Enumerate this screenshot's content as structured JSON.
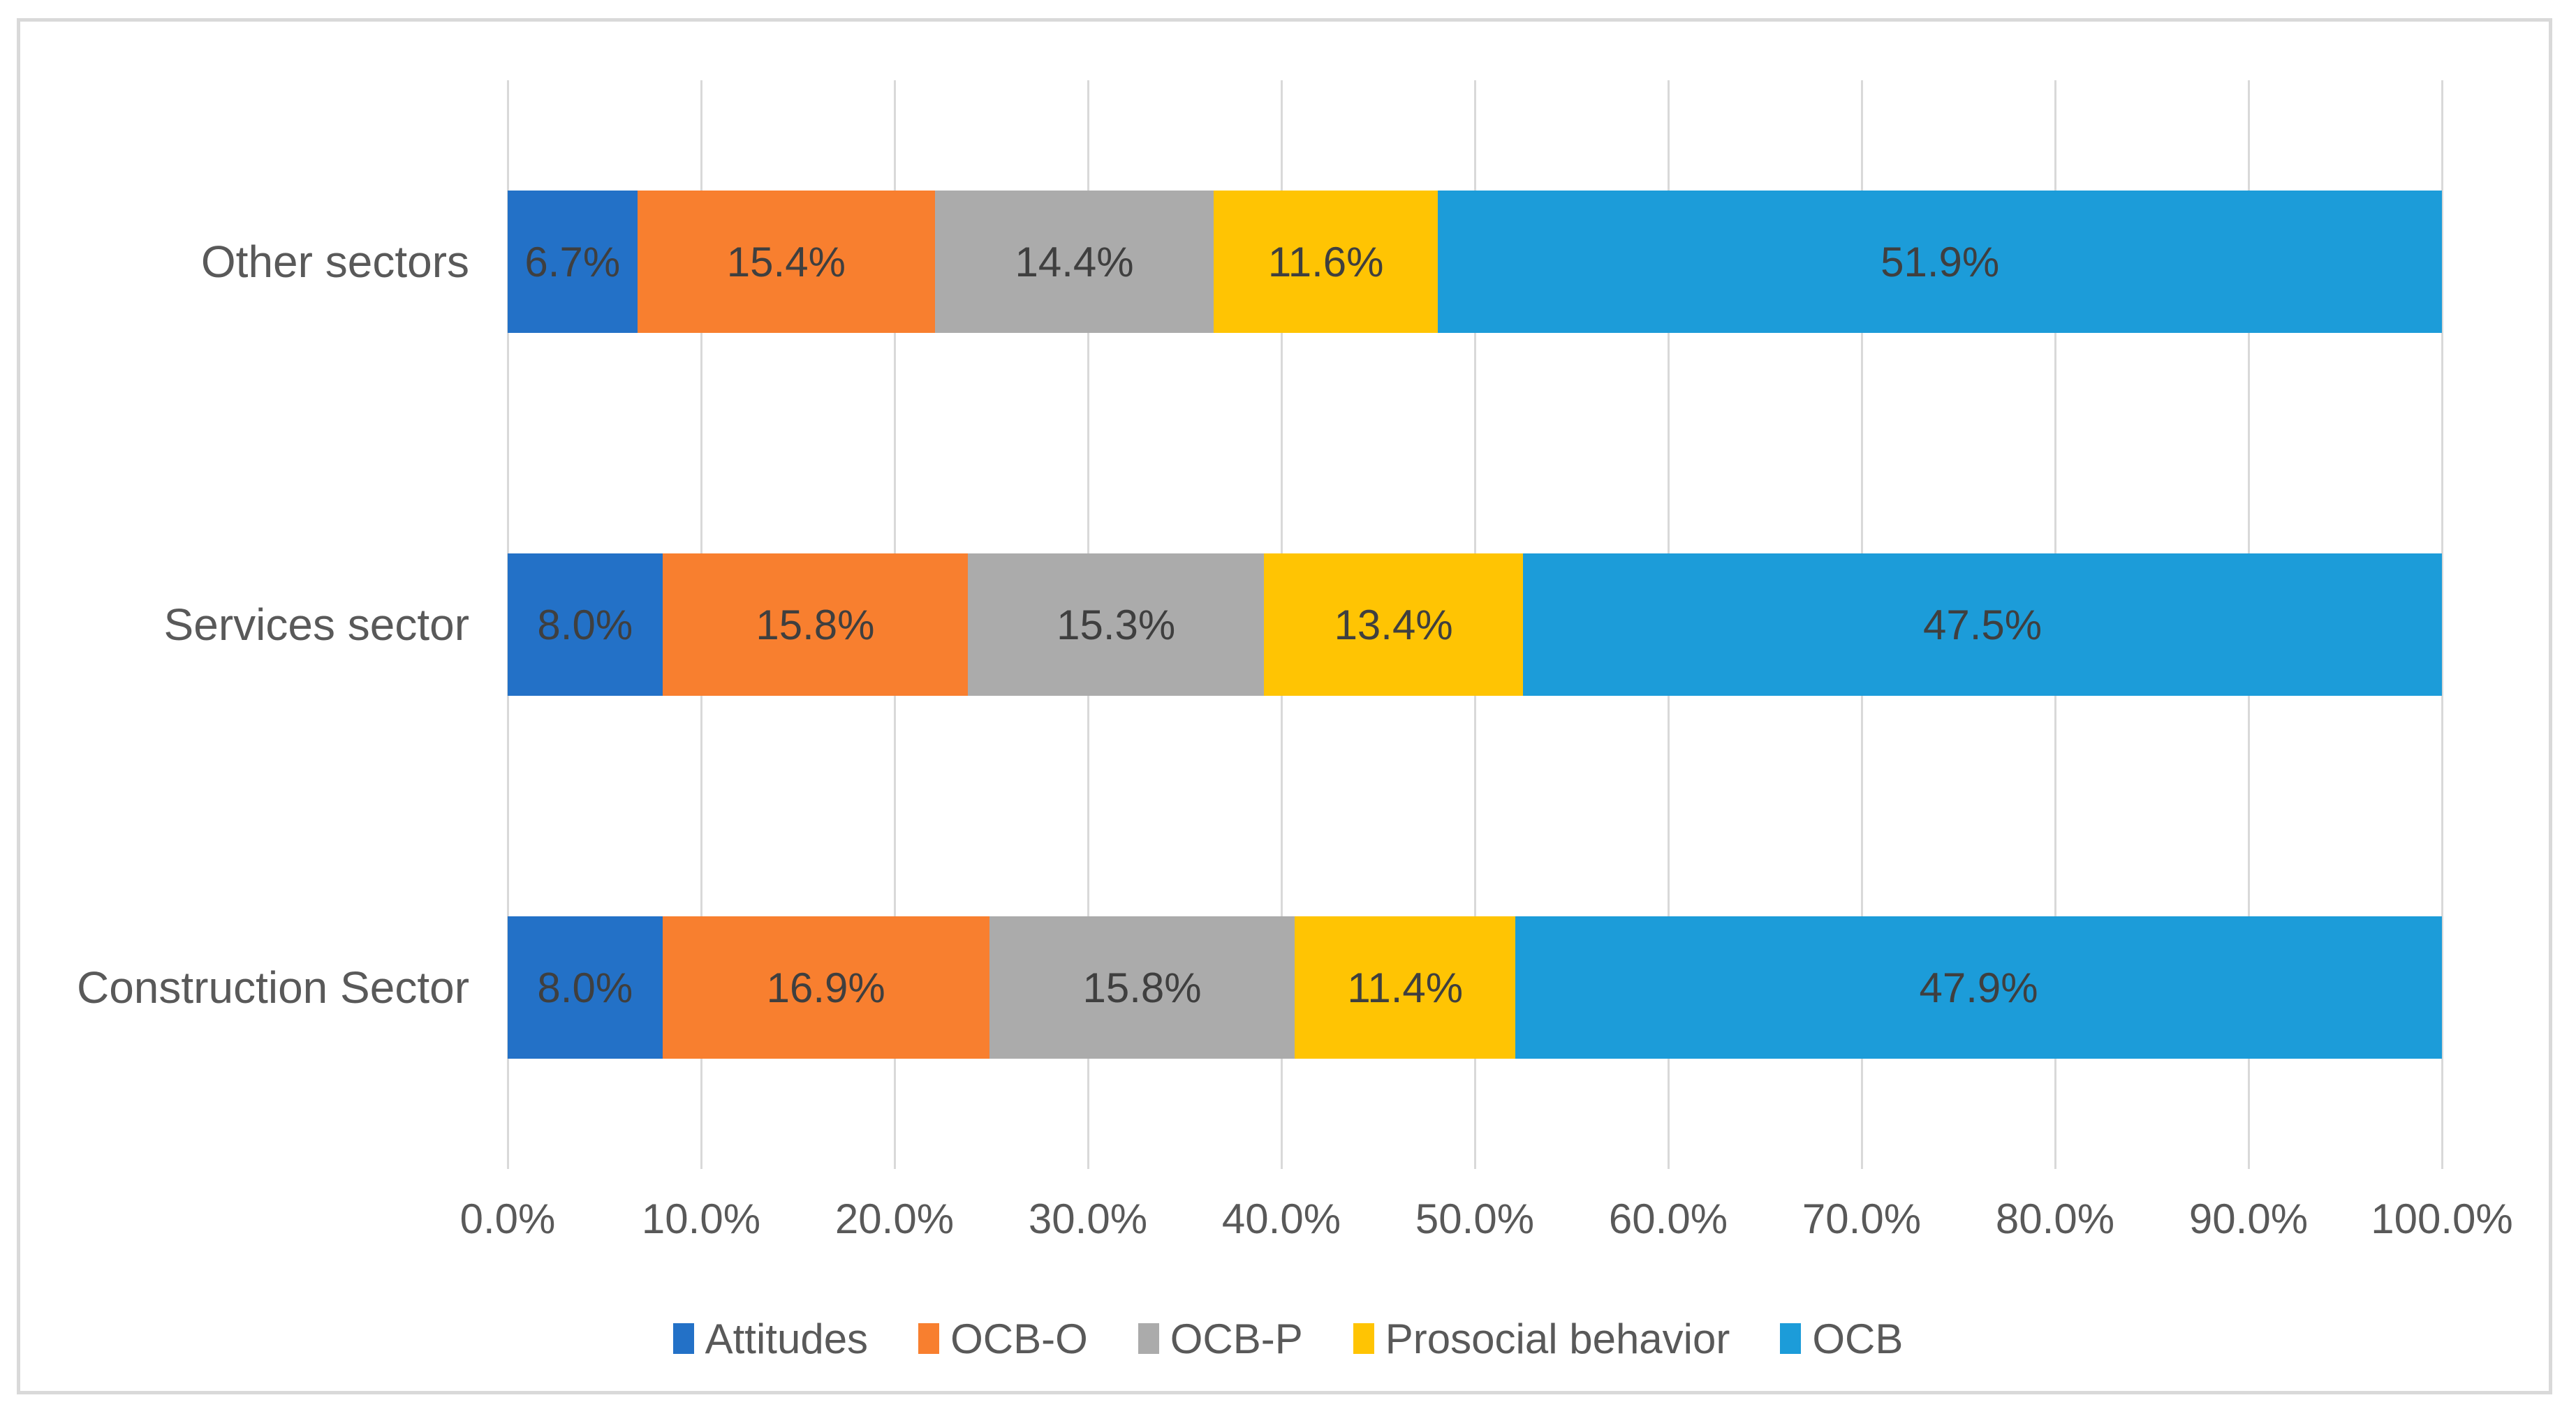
{
  "chart_data": {
    "type": "bar",
    "orientation": "horizontal",
    "stacked": true,
    "title": "",
    "xlabel": "",
    "ylabel": "",
    "categories": [
      "Other sectors",
      "Services sector",
      "Construction Sector"
    ],
    "series": [
      {
        "name": "Attitudes",
        "color": "#2371C7",
        "values": [
          6.7,
          8.0,
          8.0
        ]
      },
      {
        "name": "OCB-O",
        "color": "#F87F2F",
        "values": [
          15.4,
          15.8,
          16.9
        ]
      },
      {
        "name": "OCB-P",
        "color": "#ABABAB",
        "values": [
          14.4,
          15.3,
          15.8
        ]
      },
      {
        "name": "Prosocial behavior",
        "color": "#FFC403",
        "values": [
          11.6,
          13.4,
          11.4
        ]
      },
      {
        "name": "OCB",
        "color": "#1C9CD9",
        "values": [
          51.9,
          47.5,
          47.9
        ]
      }
    ],
    "data_labels": [
      [
        "6.7%",
        "15.4%",
        "14.4%",
        "11.6%",
        "51.9%"
      ],
      [
        "8.0%",
        "15.8%",
        "15.3%",
        "13.4%",
        "47.5%"
      ],
      [
        "8.0%",
        "16.9%",
        "15.8%",
        "11.4%",
        "47.9%"
      ]
    ],
    "x_ticks": [
      "0.0%",
      "10.0%",
      "20.0%",
      "30.0%",
      "40.0%",
      "50.0%",
      "60.0%",
      "70.0%",
      "80.0%",
      "90.0%",
      "100.0%"
    ],
    "xlim": [
      0,
      100
    ],
    "grid": "vertical-only",
    "legend_position": "bottom",
    "colors": {
      "gridline": "#D9D9D9",
      "frame_border": "#D9D9D9",
      "data_label_text": "#3F3F3F",
      "axis_text": "#595959",
      "background": "#FFFFFF"
    }
  }
}
